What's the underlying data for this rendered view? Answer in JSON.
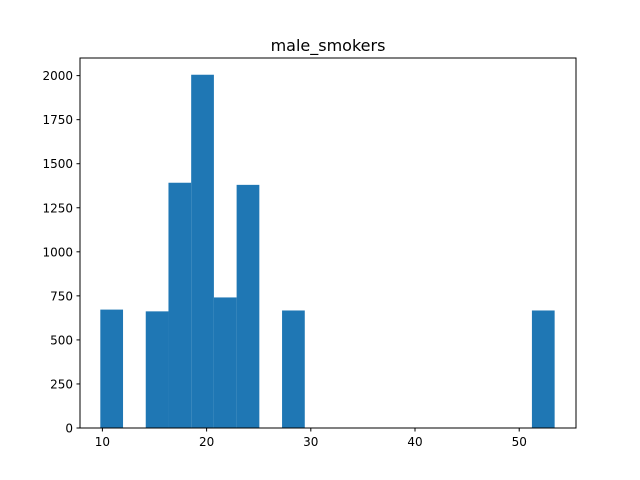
{
  "chart_data": {
    "type": "bar",
    "title": "male_smokers",
    "xlabel": "",
    "ylabel": "",
    "xlim": [
      7.85,
      55.45
    ],
    "ylim": [
      0,
      2100
    ],
    "x_ticks": [
      10,
      20,
      30,
      40,
      50
    ],
    "y_ticks": [
      0,
      250,
      500,
      750,
      1000,
      1250,
      1500,
      1750,
      2000
    ],
    "grid": false,
    "bar_color": "#1f77b4",
    "bin_edges": [
      9.8,
      11.98,
      14.16,
      16.34,
      18.52,
      20.7,
      22.88,
      25.06,
      27.24,
      29.42,
      31.6,
      33.78,
      35.96,
      38.14,
      40.32,
      42.5,
      44.68,
      46.86,
      49.04,
      51.22,
      53.4
    ],
    "counts": [
      672,
      0,
      662,
      1392,
      2005,
      741,
      1380,
      0,
      667,
      0,
      0,
      0,
      0,
      0,
      0,
      0,
      0,
      0,
      0,
      667
    ]
  }
}
